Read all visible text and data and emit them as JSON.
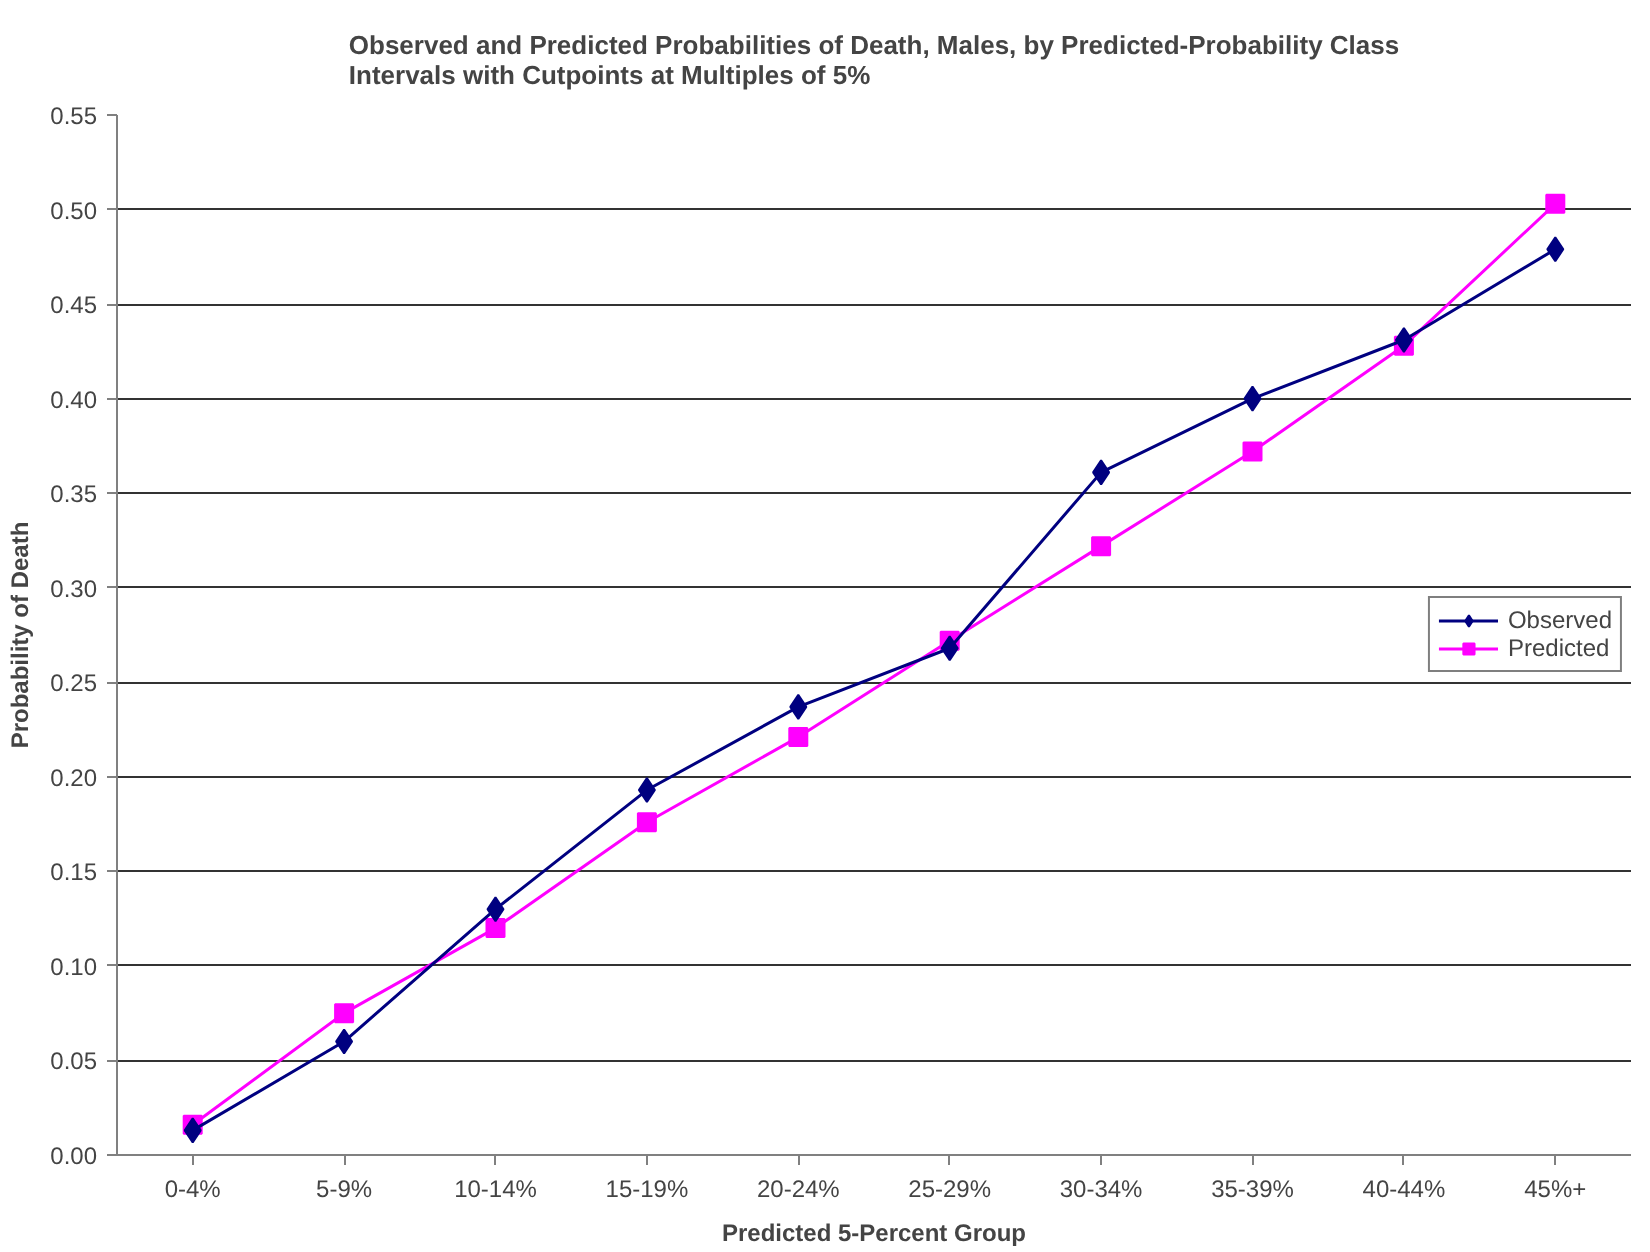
{
  "chart_data": {
    "type": "line",
    "title": "Observed and Predicted Probabilities of Death, Males, by Predicted-Probability Class\nIntervals with Cutpoints at Multiples of 5%",
    "xlabel": "Predicted 5-Percent Group",
    "ylabel": "Probability of Death",
    "categories": [
      "0-4%",
      "5-9%",
      "10-14%",
      "15-19%",
      "20-24%",
      "25-29%",
      "30-34%",
      "35-39%",
      "40-44%",
      "45%+"
    ],
    "series": [
      {
        "name": "Observed",
        "color": "#000080",
        "marker": "diamond",
        "values": [
          0.013,
          0.06,
          0.13,
          0.193,
          0.237,
          0.268,
          0.361,
          0.4,
          0.431,
          0.479
        ]
      },
      {
        "name": "Predicted",
        "color": "#ff00ff",
        "marker": "square",
        "values": [
          0.016,
          0.075,
          0.12,
          0.176,
          0.221,
          0.272,
          0.322,
          0.372,
          0.428,
          0.503
        ]
      }
    ],
    "ylim": [
      0,
      0.55
    ],
    "yticks": [
      {
        "value": 0,
        "label": "0.00"
      },
      {
        "value": 0.05,
        "label": "0.05"
      },
      {
        "value": 0.1,
        "label": "0.10"
      },
      {
        "value": 0.15,
        "label": "0.15"
      },
      {
        "value": 0.2,
        "label": "0.20"
      },
      {
        "value": 0.25,
        "label": "0.25"
      },
      {
        "value": 0.3,
        "label": "0.30"
      },
      {
        "value": 0.35,
        "label": "0.35"
      },
      {
        "value": 0.4,
        "label": "0.40"
      },
      {
        "value": 0.45,
        "label": "0.45"
      },
      {
        "value": 0.5,
        "label": "0.50"
      },
      {
        "value": 0.55,
        "label": "0.55"
      }
    ],
    "grid": "y",
    "legend": "right",
    "line_style": "solid"
  }
}
